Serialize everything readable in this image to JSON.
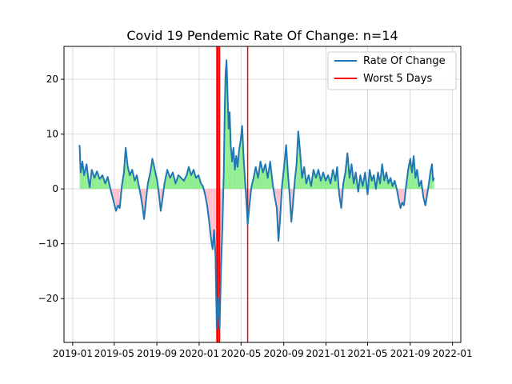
{
  "chart_data": {
    "type": "line",
    "title": "Covid 19 Pendemic Rate Of Change: n=14",
    "xlabel": "",
    "ylabel": "",
    "x_axis": "date",
    "xlim": [
      "2018-12-07",
      "2022-01-25"
    ],
    "ylim": [
      -28,
      26
    ],
    "grid": true,
    "legend_position": "upper right",
    "xticks": [
      "2019-01",
      "2019-05",
      "2019-09",
      "2020-01",
      "2020-05",
      "2020-09",
      "2021-01",
      "2021-05",
      "2021-09",
      "2022-01"
    ],
    "yticks": [
      -20,
      -10,
      0,
      10,
      20
    ],
    "colors": {
      "line": "#1f77b4",
      "worst": "#ff0000",
      "positive_fill": "#90ee90",
      "negative_fill": "#ffc0cb",
      "grid": "#d9d9d9"
    },
    "series": [
      {
        "name": "Rate Of Change",
        "points": [
          [
            "2019-01-21",
            8.0
          ],
          [
            "2019-01-24",
            3.0
          ],
          [
            "2019-01-29",
            5.0
          ],
          [
            "2019-02-03",
            2.5
          ],
          [
            "2019-02-10",
            4.5
          ],
          [
            "2019-02-15",
            2.0
          ],
          [
            "2019-02-19",
            0.3
          ],
          [
            "2019-02-25",
            3.5
          ],
          [
            "2019-03-05",
            2.0
          ],
          [
            "2019-03-12",
            3.2
          ],
          [
            "2019-03-20",
            1.8
          ],
          [
            "2019-03-28",
            2.5
          ],
          [
            "2019-04-05",
            1.0
          ],
          [
            "2019-04-12",
            2.2
          ],
          [
            "2019-04-18",
            0.5
          ],
          [
            "2019-04-24",
            -1.0
          ],
          [
            "2019-04-30",
            -2.5
          ],
          [
            "2019-05-06",
            -4.0
          ],
          [
            "2019-05-12",
            -3.0
          ],
          [
            "2019-05-17",
            -3.5
          ],
          [
            "2019-05-23",
            0.5
          ],
          [
            "2019-05-29",
            3.0
          ],
          [
            "2019-06-03",
            7.5
          ],
          [
            "2019-06-09",
            4.0
          ],
          [
            "2019-06-15",
            2.5
          ],
          [
            "2019-06-22",
            3.5
          ],
          [
            "2019-06-29",
            1.5
          ],
          [
            "2019-07-05",
            2.5
          ],
          [
            "2019-07-11",
            0.5
          ],
          [
            "2019-07-16",
            -1.0
          ],
          [
            "2019-07-21",
            -3.0
          ],
          [
            "2019-07-26",
            -5.5
          ],
          [
            "2019-07-31",
            -2.5
          ],
          [
            "2019-08-06",
            1.0
          ],
          [
            "2019-08-13",
            3.0
          ],
          [
            "2019-08-19",
            5.5
          ],
          [
            "2019-08-26",
            3.5
          ],
          [
            "2019-09-02",
            1.5
          ],
          [
            "2019-09-07",
            -1.0
          ],
          [
            "2019-09-12",
            -4.0
          ],
          [
            "2019-09-17",
            -2.0
          ],
          [
            "2019-09-23",
            1.0
          ],
          [
            "2019-10-01",
            3.5
          ],
          [
            "2019-10-09",
            2.0
          ],
          [
            "2019-10-17",
            3.0
          ],
          [
            "2019-10-25",
            1.0
          ],
          [
            "2019-11-02",
            2.5
          ],
          [
            "2019-11-10",
            2.0
          ],
          [
            "2019-11-18",
            1.5
          ],
          [
            "2019-11-26",
            2.5
          ],
          [
            "2019-12-02",
            4.0
          ],
          [
            "2019-12-09",
            2.5
          ],
          [
            "2019-12-16",
            3.5
          ],
          [
            "2019-12-23",
            2.0
          ],
          [
            "2019-12-30",
            2.5
          ],
          [
            "2020-01-06",
            1.0
          ],
          [
            "2020-01-12",
            0.5
          ],
          [
            "2020-01-18",
            -1.0
          ],
          [
            "2020-01-24",
            -3.0
          ],
          [
            "2020-01-30",
            -6.0
          ],
          [
            "2020-02-04",
            -9.0
          ],
          [
            "2020-02-09",
            -11.0
          ],
          [
            "2020-02-13",
            -7.5
          ],
          [
            "2020-02-17",
            -12.0
          ],
          [
            "2020-02-21",
            -25.5
          ],
          [
            "2020-02-25",
            -20.0
          ],
          [
            "2020-02-29",
            -25.5
          ],
          [
            "2020-03-04",
            -15.0
          ],
          [
            "2020-03-08",
            -7.0
          ],
          [
            "2020-03-12",
            3.0
          ],
          [
            "2020-03-15",
            15.0
          ],
          [
            "2020-03-17",
            21.0
          ],
          [
            "2020-03-20",
            23.5
          ],
          [
            "2020-03-23",
            17.0
          ],
          [
            "2020-03-26",
            11.0
          ],
          [
            "2020-03-29",
            14.0
          ],
          [
            "2020-04-01",
            8.0
          ],
          [
            "2020-04-05",
            5.0
          ],
          [
            "2020-04-09",
            7.5
          ],
          [
            "2020-04-13",
            3.5
          ],
          [
            "2020-04-17",
            6.0
          ],
          [
            "2020-04-21",
            4.0
          ],
          [
            "2020-04-25",
            7.0
          ],
          [
            "2020-04-30",
            9.0
          ],
          [
            "2020-05-04",
            11.5
          ],
          [
            "2020-05-08",
            6.0
          ],
          [
            "2020-05-12",
            2.0
          ],
          [
            "2020-05-16",
            -2.0
          ],
          [
            "2020-05-20",
            -6.5
          ],
          [
            "2020-05-25",
            -3.0
          ],
          [
            "2020-05-31",
            0.5
          ],
          [
            "2020-06-06",
            2.0
          ],
          [
            "2020-06-12",
            4.0
          ],
          [
            "2020-06-19",
            2.0
          ],
          [
            "2020-06-26",
            5.0
          ],
          [
            "2020-07-03",
            3.0
          ],
          [
            "2020-07-10",
            4.5
          ],
          [
            "2020-07-17",
            2.0
          ],
          [
            "2020-07-24",
            5.0
          ],
          [
            "2020-07-31",
            1.0
          ],
          [
            "2020-08-06",
            -1.5
          ],
          [
            "2020-08-12",
            -3.5
          ],
          [
            "2020-08-17",
            -9.5
          ],
          [
            "2020-08-22",
            -5.0
          ],
          [
            "2020-08-27",
            0.5
          ],
          [
            "2020-09-02",
            4.0
          ],
          [
            "2020-09-08",
            8.0
          ],
          [
            "2020-09-13",
            3.0
          ],
          [
            "2020-09-18",
            -1.0
          ],
          [
            "2020-09-23",
            -6.0
          ],
          [
            "2020-09-28",
            -2.5
          ],
          [
            "2020-10-03",
            1.5
          ],
          [
            "2020-10-08",
            4.5
          ],
          [
            "2020-10-13",
            10.5
          ],
          [
            "2020-10-18",
            7.0
          ],
          [
            "2020-10-24",
            2.0
          ],
          [
            "2020-10-30",
            4.0
          ],
          [
            "2020-11-05",
            1.0
          ],
          [
            "2020-11-12",
            2.5
          ],
          [
            "2020-11-19",
            0.5
          ],
          [
            "2020-11-26",
            3.5
          ],
          [
            "2020-12-03",
            2.0
          ],
          [
            "2020-12-10",
            3.5
          ],
          [
            "2020-12-17",
            1.5
          ],
          [
            "2020-12-24",
            3.0
          ],
          [
            "2020-12-31",
            1.5
          ],
          [
            "2021-01-07",
            2.5
          ],
          [
            "2021-01-14",
            1.0
          ],
          [
            "2021-01-21",
            3.5
          ],
          [
            "2021-01-28",
            1.5
          ],
          [
            "2021-02-02",
            4.0
          ],
          [
            "2021-02-08",
            -1.0
          ],
          [
            "2021-02-14",
            -3.5
          ],
          [
            "2021-02-20",
            1.0
          ],
          [
            "2021-02-26",
            3.0
          ],
          [
            "2021-03-04",
            6.5
          ],
          [
            "2021-03-10",
            2.0
          ],
          [
            "2021-03-16",
            4.5
          ],
          [
            "2021-03-22",
            1.0
          ],
          [
            "2021-03-28",
            3.0
          ],
          [
            "2021-04-04",
            -0.5
          ],
          [
            "2021-04-10",
            2.5
          ],
          [
            "2021-04-17",
            0.5
          ],
          [
            "2021-04-24",
            3.0
          ],
          [
            "2021-05-01",
            -1.0
          ],
          [
            "2021-05-07",
            3.5
          ],
          [
            "2021-05-13",
            1.5
          ],
          [
            "2021-05-19",
            2.5
          ],
          [
            "2021-05-25",
            0.0
          ],
          [
            "2021-05-31",
            3.0
          ],
          [
            "2021-06-06",
            1.0
          ],
          [
            "2021-06-12",
            4.5
          ],
          [
            "2021-06-18",
            1.5
          ],
          [
            "2021-06-24",
            3.0
          ],
          [
            "2021-06-30",
            1.0
          ],
          [
            "2021-07-06",
            2.0
          ],
          [
            "2021-07-12",
            0.5
          ],
          [
            "2021-07-18",
            1.5
          ],
          [
            "2021-07-24",
            0.0
          ],
          [
            "2021-07-30",
            -2.0
          ],
          [
            "2021-08-04",
            -3.5
          ],
          [
            "2021-08-09",
            -2.5
          ],
          [
            "2021-08-14",
            -3.0
          ],
          [
            "2021-08-20",
            0.5
          ],
          [
            "2021-08-26",
            3.5
          ],
          [
            "2021-09-01",
            5.5
          ],
          [
            "2021-09-06",
            3.0
          ],
          [
            "2021-09-11",
            6.0
          ],
          [
            "2021-09-16",
            2.0
          ],
          [
            "2021-09-21",
            3.5
          ],
          [
            "2021-09-27",
            0.5
          ],
          [
            "2021-10-03",
            1.5
          ],
          [
            "2021-10-09",
            -1.5
          ],
          [
            "2021-10-15",
            -3.0
          ],
          [
            "2021-10-20",
            -1.0
          ],
          [
            "2021-10-25",
            1.0
          ],
          [
            "2021-10-29",
            3.0
          ],
          [
            "2021-11-03",
            4.5
          ],
          [
            "2021-11-06",
            1.5
          ],
          [
            "2021-11-09",
            2.0
          ]
        ]
      },
      {
        "name": "Worst 5 Days",
        "dates": [
          "2020-02-21",
          "2020-02-22",
          "2020-02-25",
          "2020-02-29",
          "2020-05-20"
        ]
      }
    ]
  }
}
